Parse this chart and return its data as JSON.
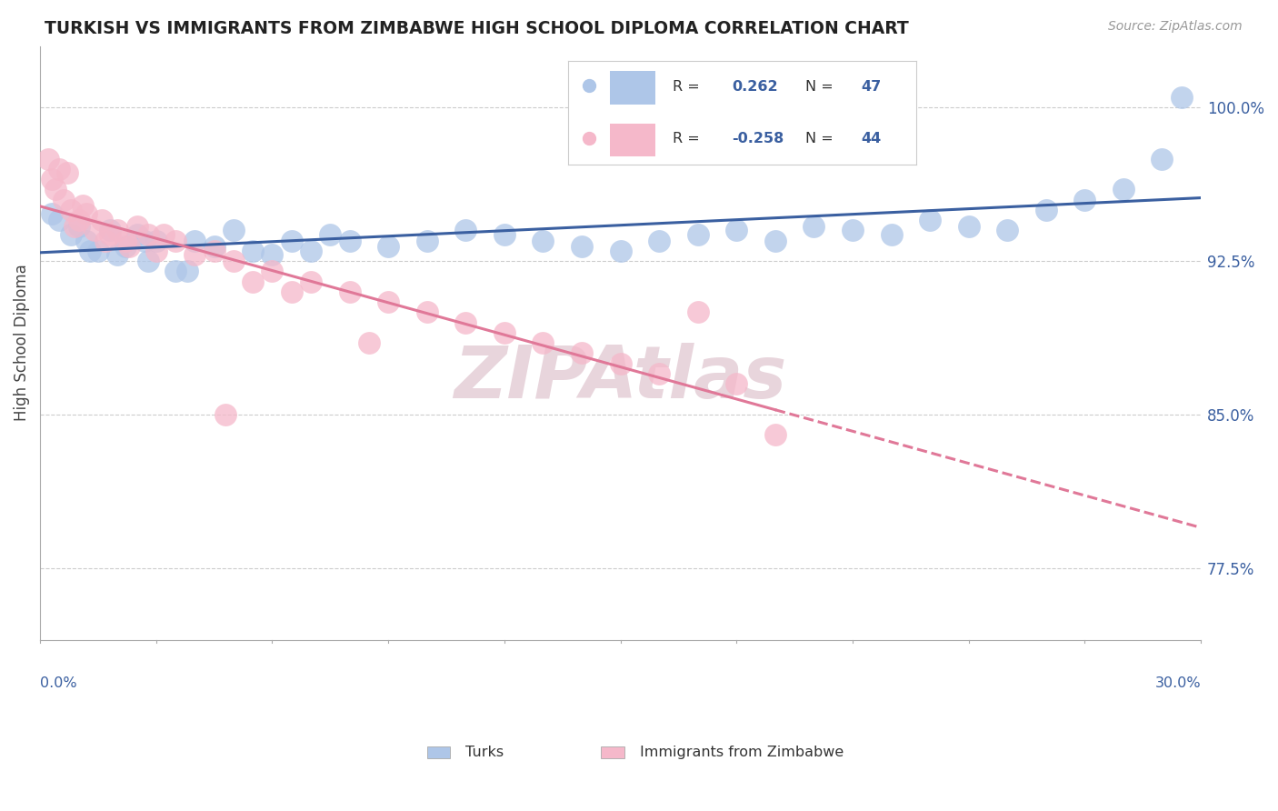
{
  "title": "TURKISH VS IMMIGRANTS FROM ZIMBABWE HIGH SCHOOL DIPLOMA CORRELATION CHART",
  "source": "Source: ZipAtlas.com",
  "ylabel": "High School Diploma",
  "y_ticks": [
    77.5,
    85.0,
    92.5,
    100.0
  ],
  "y_tick_labels": [
    "77.5%",
    "85.0%",
    "92.5%",
    "100.0%"
  ],
  "xmin": 0.0,
  "xmax": 30.0,
  "ymin": 74.0,
  "ymax": 103.0,
  "R_blue": "0.262",
  "N_blue": "47",
  "R_pink": "-0.258",
  "N_pink": "44",
  "blue_color": "#aec6e8",
  "pink_color": "#f5b8ca",
  "blue_line_color": "#3a5fa0",
  "pink_line_color": "#e07898",
  "watermark": "ZIPAtlas",
  "watermark_color": "#e8d5dc",
  "legend_label_blue": "Turks",
  "legend_label_pink": "Immigrants from Zimbabwe",
  "blue_dots": [
    [
      0.5,
      94.5
    ],
    [
      0.8,
      93.8
    ],
    [
      1.0,
      94.2
    ],
    [
      1.2,
      93.5
    ],
    [
      1.5,
      93.0
    ],
    [
      1.8,
      94.0
    ],
    [
      2.0,
      92.8
    ],
    [
      2.2,
      93.2
    ],
    [
      2.5,
      93.8
    ],
    [
      2.8,
      92.5
    ],
    [
      3.0,
      93.5
    ],
    [
      3.5,
      92.0
    ],
    [
      4.0,
      93.5
    ],
    [
      4.5,
      93.2
    ],
    [
      5.0,
      94.0
    ],
    [
      5.5,
      93.0
    ],
    [
      6.0,
      92.8
    ],
    [
      6.5,
      93.5
    ],
    [
      7.0,
      93.0
    ],
    [
      7.5,
      93.8
    ],
    [
      8.0,
      93.5
    ],
    [
      9.0,
      93.2
    ],
    [
      10.0,
      93.5
    ],
    [
      11.0,
      94.0
    ],
    [
      12.0,
      93.8
    ],
    [
      13.0,
      93.5
    ],
    [
      14.0,
      93.2
    ],
    [
      15.0,
      93.0
    ],
    [
      16.0,
      93.5
    ],
    [
      17.0,
      93.8
    ],
    [
      18.0,
      94.0
    ],
    [
      19.0,
      93.5
    ],
    [
      20.0,
      94.2
    ],
    [
      21.0,
      94.0
    ],
    [
      22.0,
      93.8
    ],
    [
      23.0,
      94.5
    ],
    [
      24.0,
      94.2
    ],
    [
      25.0,
      94.0
    ],
    [
      26.0,
      95.0
    ],
    [
      27.0,
      95.5
    ],
    [
      28.0,
      96.0
    ],
    [
      29.0,
      97.5
    ],
    [
      0.3,
      94.8
    ],
    [
      1.3,
      93.0
    ],
    [
      2.7,
      93.5
    ],
    [
      3.8,
      92.0
    ],
    [
      29.5,
      100.5
    ]
  ],
  "pink_dots": [
    [
      0.2,
      97.5
    ],
    [
      0.4,
      96.0
    ],
    [
      0.6,
      95.5
    ],
    [
      0.8,
      95.0
    ],
    [
      1.0,
      94.5
    ],
    [
      1.2,
      94.8
    ],
    [
      1.4,
      94.0
    ],
    [
      1.6,
      94.5
    ],
    [
      1.8,
      93.8
    ],
    [
      2.0,
      94.0
    ],
    [
      2.2,
      93.5
    ],
    [
      2.5,
      94.2
    ],
    [
      2.8,
      93.8
    ],
    [
      3.0,
      93.0
    ],
    [
      3.5,
      93.5
    ],
    [
      4.0,
      92.8
    ],
    [
      4.5,
      93.0
    ],
    [
      5.0,
      92.5
    ],
    [
      5.5,
      91.5
    ],
    [
      6.0,
      92.0
    ],
    [
      6.5,
      91.0
    ],
    [
      7.0,
      91.5
    ],
    [
      8.0,
      91.0
    ],
    [
      9.0,
      90.5
    ],
    [
      10.0,
      90.0
    ],
    [
      11.0,
      89.5
    ],
    [
      12.0,
      89.0
    ],
    [
      13.0,
      88.5
    ],
    [
      14.0,
      88.0
    ],
    [
      15.0,
      87.5
    ],
    [
      16.0,
      87.0
    ],
    [
      17.0,
      90.0
    ],
    [
      18.0,
      86.5
    ],
    [
      19.0,
      84.0
    ],
    [
      0.3,
      96.5
    ],
    [
      0.5,
      97.0
    ],
    [
      0.7,
      96.8
    ],
    [
      1.1,
      95.2
    ],
    [
      2.3,
      93.2
    ],
    [
      3.2,
      93.8
    ],
    [
      4.8,
      85.0
    ],
    [
      8.5,
      88.5
    ],
    [
      0.9,
      94.2
    ],
    [
      1.7,
      93.5
    ]
  ]
}
